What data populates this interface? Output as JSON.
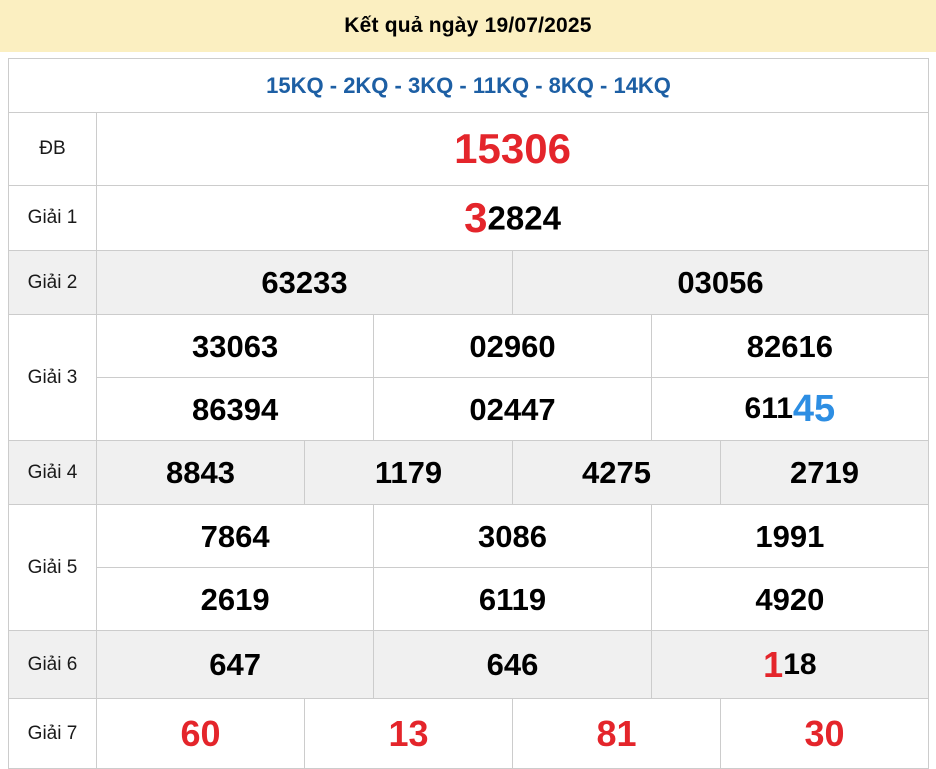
{
  "header": {
    "title": "Kết quả ngày 19/07/2025"
  },
  "subtitle": {
    "links": [
      "15KQ",
      "2KQ",
      "3KQ",
      "11KQ",
      "8KQ",
      "14KQ"
    ],
    "separator": " - "
  },
  "colors": {
    "header_bg": "#fbefc1",
    "link_blue": "#1d5fa4",
    "highlight_red": "#e4252b",
    "highlight_blue": "#2d8ee3",
    "row_alt_bg": "#f0f0f0",
    "border": "#cccccc"
  },
  "rows": {
    "db": {
      "label": "ĐB",
      "value": "15306"
    },
    "g1": {
      "label": "Giải 1",
      "red_part": "3",
      "black_part": "2824"
    },
    "g2": {
      "label": "Giải 2",
      "values": [
        "63233",
        "03056"
      ]
    },
    "g3": {
      "label": "Giải 3",
      "row1": [
        "33063",
        "02960",
        "82616"
      ],
      "row2": [
        "86394",
        "02447"
      ],
      "special": {
        "black": "611",
        "blue": "45"
      }
    },
    "g4": {
      "label": "Giải 4",
      "values": [
        "8843",
        "1179",
        "4275",
        "2719"
      ]
    },
    "g5": {
      "label": "Giải 5",
      "row1": [
        "7864",
        "3086",
        "1991"
      ],
      "row2": [
        "2619",
        "6119",
        "4920"
      ]
    },
    "g6": {
      "label": "Giải 6",
      "values": [
        "647",
        "646"
      ],
      "special": {
        "red": "1",
        "black": "18"
      }
    },
    "g7": {
      "label": "Giải 7",
      "values": [
        "60",
        "13",
        "81",
        "30"
      ]
    }
  }
}
